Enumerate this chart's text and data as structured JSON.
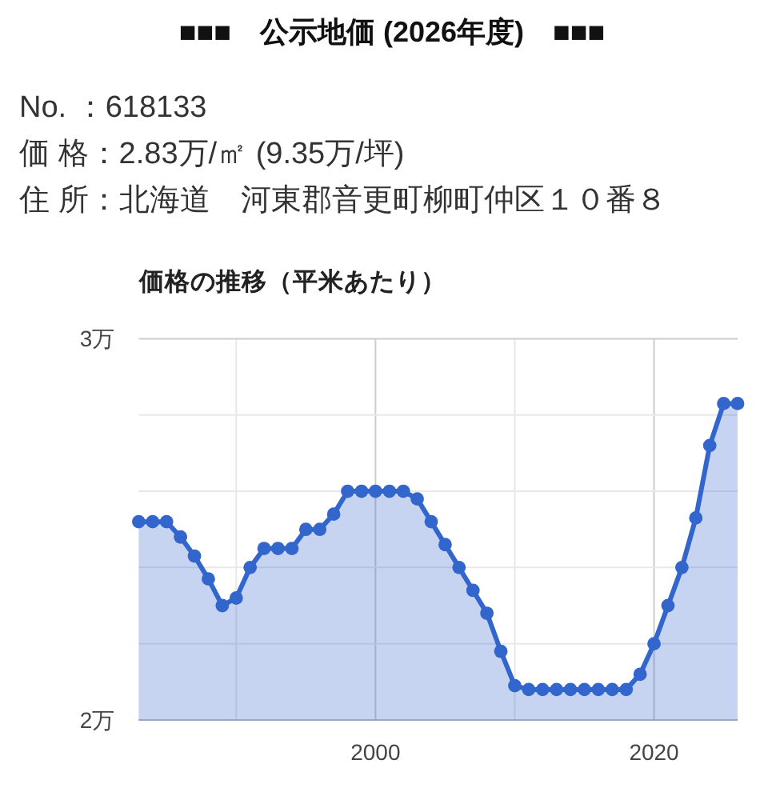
{
  "chart_data": {
    "type": "area",
    "title": "■■■　公示地価 (2026年度)　■■■",
    "annotations": [
      "No. ：618133",
      "価 格：2.83万/㎡ (9.35万/坪)",
      "住 所：北海道　河東郡音更町柳町仲区１０番８"
    ],
    "subtitle": "価格の推移（平米あたり）",
    "x": [
      1983,
      1984,
      1985,
      1986,
      1987,
      1988,
      1989,
      1990,
      1991,
      1992,
      1993,
      1994,
      1995,
      1996,
      1997,
      1998,
      1999,
      2000,
      2001,
      2002,
      2003,
      2004,
      2005,
      2006,
      2007,
      2008,
      2009,
      2010,
      2011,
      2012,
      2013,
      2014,
      2015,
      2016,
      2017,
      2018,
      2019,
      2020,
      2021,
      2022,
      2023,
      2024,
      2025,
      2026
    ],
    "series": [
      {
        "color": "#3366cc",
        "values": [
          2.52,
          2.52,
          2.52,
          2.48,
          2.43,
          2.37,
          2.3,
          2.32,
          2.4,
          2.45,
          2.45,
          2.45,
          2.5,
          2.5,
          2.54,
          2.6,
          2.6,
          2.6,
          2.6,
          2.6,
          2.58,
          2.52,
          2.46,
          2.4,
          2.34,
          2.28,
          2.18,
          2.09,
          2.08,
          2.08,
          2.08,
          2.08,
          2.08,
          2.08,
          2.08,
          2.08,
          2.12,
          2.2,
          2.3,
          2.4,
          2.53,
          2.72,
          2.83,
          2.83
        ]
      }
    ],
    "xlim": [
      1983,
      2026
    ],
    "xticks": [
      {
        "value": 1990,
        "label": null
      },
      2000,
      {
        "value": 2010,
        "label": null
      },
      2020
    ],
    "ylim": [
      2,
      3
    ],
    "yticks": [
      {
        "value": 2,
        "label": "2万"
      },
      {
        "value": 2.2,
        "label": null
      },
      {
        "value": 2.4,
        "label": null
      },
      {
        "value": 2.6,
        "label": null
      },
      {
        "value": 2.8,
        "label": null
      },
      {
        "value": 3,
        "label": "3万"
      }
    ],
    "grid": true,
    "marker": "circle",
    "line_style": "solid"
  }
}
